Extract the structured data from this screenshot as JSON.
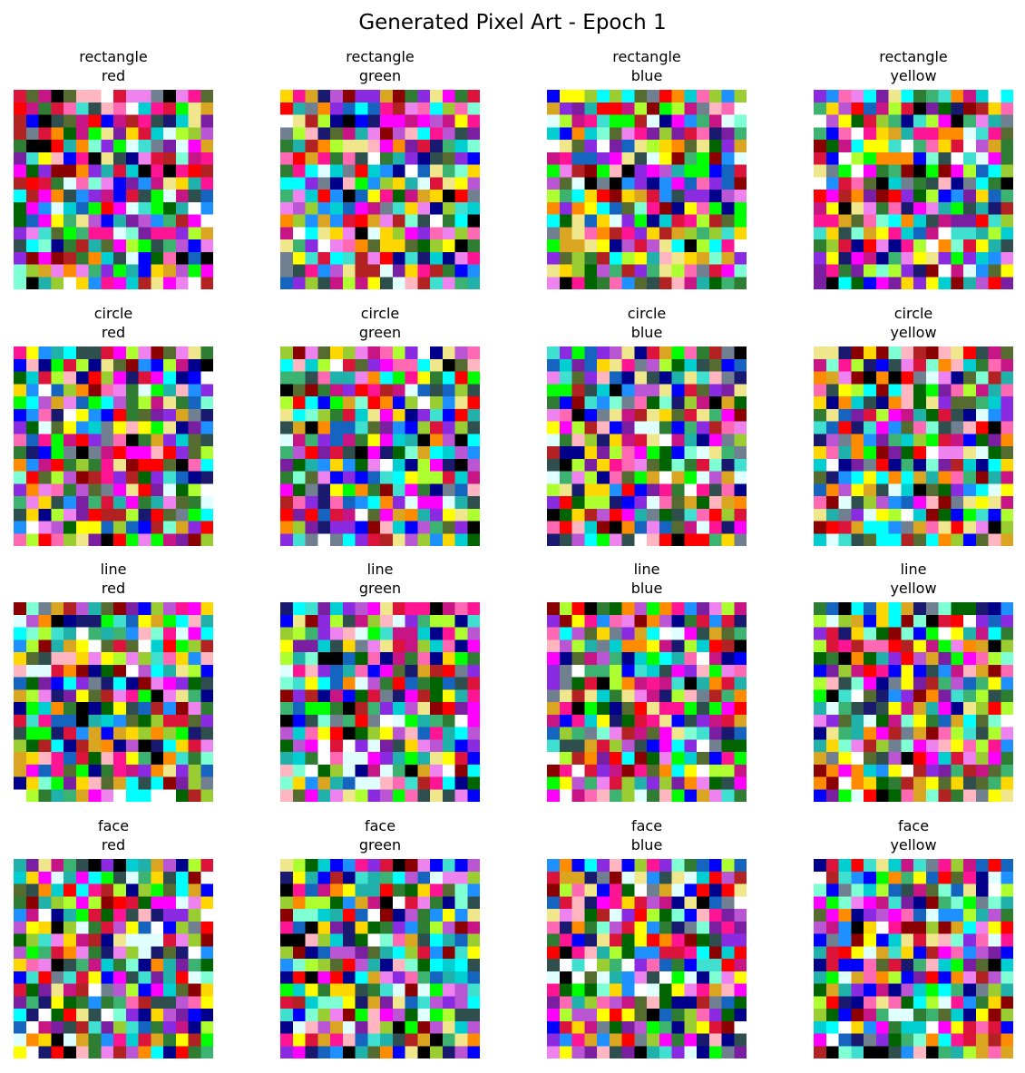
{
  "figure": {
    "title": "Generated Pixel Art - Epoch 1"
  },
  "chart_data": {
    "type": "heatmap",
    "title": "Generated Pixel Art - Epoch 1",
    "grid_size": [
      16,
      16
    ],
    "axes": "off",
    "rows": [
      "rectangle",
      "circle",
      "line",
      "face"
    ],
    "columns": [
      "red",
      "green",
      "blue",
      "yellow"
    ],
    "panels": [
      {
        "shape": "rectangle",
        "color": "red"
      },
      {
        "shape": "rectangle",
        "color": "green"
      },
      {
        "shape": "rectangle",
        "color": "blue"
      },
      {
        "shape": "rectangle",
        "color": "yellow"
      },
      {
        "shape": "circle",
        "color": "red"
      },
      {
        "shape": "circle",
        "color": "green"
      },
      {
        "shape": "circle",
        "color": "blue"
      },
      {
        "shape": "circle",
        "color": "yellow"
      },
      {
        "shape": "line",
        "color": "red"
      },
      {
        "shape": "line",
        "color": "green"
      },
      {
        "shape": "line",
        "color": "blue"
      },
      {
        "shape": "line",
        "color": "yellow"
      },
      {
        "shape": "face",
        "color": "red"
      },
      {
        "shape": "face",
        "color": "green"
      },
      {
        "shape": "face",
        "color": "blue"
      },
      {
        "shape": "face",
        "color": "yellow"
      }
    ],
    "palette": [
      "#ff0000",
      "#00ff00",
      "#0000ff",
      "#ffff00",
      "#ff00ff",
      "#00ffff",
      "#000000",
      "#ffffff",
      "#ff1493",
      "#7b1fa2",
      "#1565c0",
      "#2e7d32",
      "#ff8c00",
      "#8b0000",
      "#006400",
      "#00008b",
      "#9acd32",
      "#ff69b4",
      "#40e0d0",
      "#ffd700",
      "#8a2be2",
      "#dc143c",
      "#00ced1",
      "#adff2f",
      "#ee82ee",
      "#708090",
      "#f0e68c",
      "#1e90ff",
      "#b22222",
      "#3cb371",
      "#c71585",
      "#191970",
      "#daa520",
      "#7fffd4",
      "#ba55d3",
      "#2f4f4f",
      "#e0ffff",
      "#ffb6c1",
      "#20b2aa",
      "#556b2f"
    ]
  }
}
